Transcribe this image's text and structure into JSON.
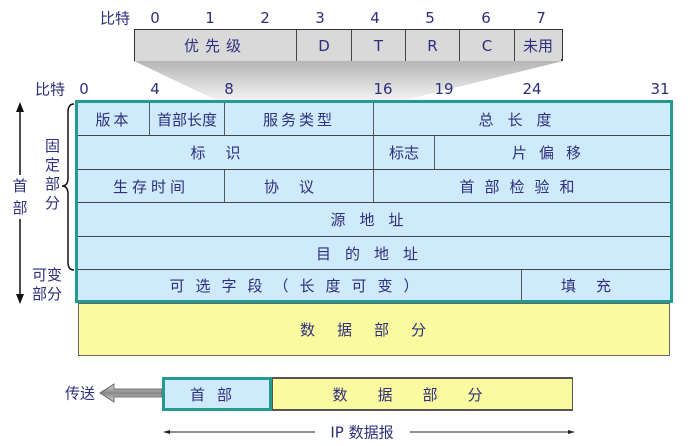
{
  "bit_label": "比特",
  "tos": {
    "bits": [
      "0",
      "1",
      "2",
      "3",
      "4",
      "5",
      "6",
      "7"
    ],
    "fields": [
      "优先级",
      "D",
      "T",
      "R",
      "C",
      "未用"
    ]
  },
  "header": {
    "bits": [
      "0",
      "4",
      "8",
      "16",
      "19",
      "24",
      "31"
    ],
    "fields": {
      "version": "版本",
      "ihl": "首部长度",
      "tos": "服务类型",
      "total_length": "总长度",
      "id": "标识",
      "flags": "标志",
      "frag_offset": "片偏移",
      "ttl": "生存时间",
      "protocol": "协议",
      "checksum": "首部检验和",
      "src": "源地址",
      "dst": "目的地址",
      "options": "可选字段（长度可变）",
      "padding": "填充"
    }
  },
  "data_part": "数据部分",
  "labels": {
    "header": "首部",
    "fixed": "固定部分",
    "variable": "可变部分"
  },
  "bottom": {
    "send": "传送",
    "header": "首部",
    "data": "数据部分",
    "datagram": "IP 数据报"
  },
  "colors": {
    "header_fill": "#cfeafb",
    "data_fill": "#fafa9e",
    "border": "#279a90",
    "text": "#2e2f7e"
  }
}
